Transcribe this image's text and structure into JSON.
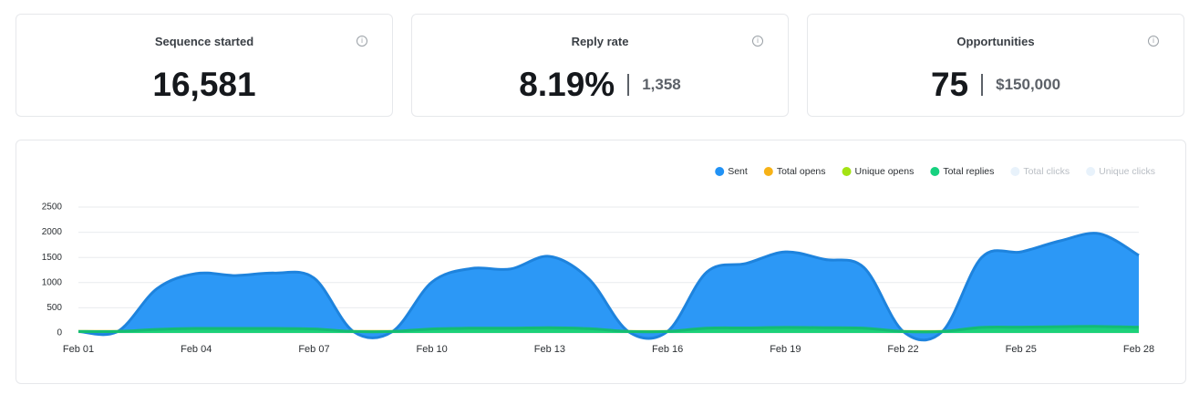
{
  "cards": [
    {
      "title": "Sequence started",
      "value": "16,581"
    },
    {
      "title": "Reply rate",
      "value": "8.19%",
      "secondary": "1,358"
    },
    {
      "title": "Opportunities",
      "value": "75",
      "secondary": "$150,000"
    }
  ],
  "chart_data": {
    "type": "area",
    "categories": [
      "Feb 01",
      null,
      null,
      "Feb 04",
      null,
      null,
      "Feb 07",
      null,
      null,
      "Feb 10",
      null,
      null,
      "Feb 13",
      null,
      null,
      "Feb 16",
      null,
      null,
      "Feb 19",
      null,
      null,
      "Feb 22",
      null,
      null,
      "Feb 25",
      null,
      null,
      "Feb 28"
    ],
    "series": [
      {
        "name": "Sent",
        "color": "#2192f5",
        "values": [
          30,
          30,
          880,
          1180,
          1140,
          1190,
          1090,
          30,
          30,
          1010,
          1280,
          1270,
          1520,
          1070,
          30,
          30,
          1210,
          1380,
          1610,
          1460,
          1300,
          30,
          30,
          1500,
          1610,
          1830,
          1970,
          1540
        ]
      },
      {
        "name": "Total opens",
        "color": "#f7b216",
        "values": [
          30,
          30,
          40,
          45,
          45,
          45,
          40,
          30,
          30,
          40,
          45,
          45,
          50,
          45,
          30,
          30,
          45,
          45,
          50,
          50,
          45,
          30,
          30,
          50,
          50,
          55,
          55,
          50
        ]
      },
      {
        "name": "Unique opens",
        "color": "#a4e313",
        "values": [
          30,
          30,
          35,
          40,
          40,
          40,
          35,
          30,
          30,
          35,
          40,
          40,
          45,
          40,
          30,
          30,
          40,
          40,
          45,
          45,
          40,
          30,
          30,
          45,
          45,
          50,
          50,
          45
        ]
      },
      {
        "name": "Total replies",
        "color": "#16d17f",
        "values": [
          30,
          30,
          70,
          90,
          90,
          90,
          80,
          30,
          30,
          80,
          95,
          95,
          105,
          85,
          30,
          30,
          95,
          100,
          110,
          105,
          95,
          30,
          30,
          110,
          115,
          125,
          130,
          115
        ]
      }
    ],
    "hidden_series": [
      {
        "name": "Total clicks",
        "color": "#e8f2fb"
      },
      {
        "name": "Unique clicks",
        "color": "#e8f2fb"
      }
    ],
    "ylim": [
      0,
      2500
    ],
    "yticks": [
      0,
      500,
      1000,
      1500,
      2000,
      2500
    ],
    "grid": true,
    "legend": "top-right"
  }
}
